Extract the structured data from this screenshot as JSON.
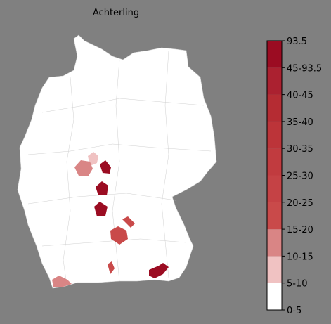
{
  "title": "Achterling",
  "colorbar": {
    "labels": [
      "0-5",
      "5-10",
      "10-15",
      "15-20",
      "20-25",
      "25-30",
      "30-35",
      "35-40",
      "40-45",
      "45-93.5",
      "93.5"
    ],
    "colors": [
      "#ffffff",
      "#f0c2c2",
      "#d98585",
      "#c94a4a",
      "#c54245",
      "#c13b3f",
      "#bc3439",
      "#b52c33",
      "#ab2130",
      "#9b0c22"
    ]
  }
}
